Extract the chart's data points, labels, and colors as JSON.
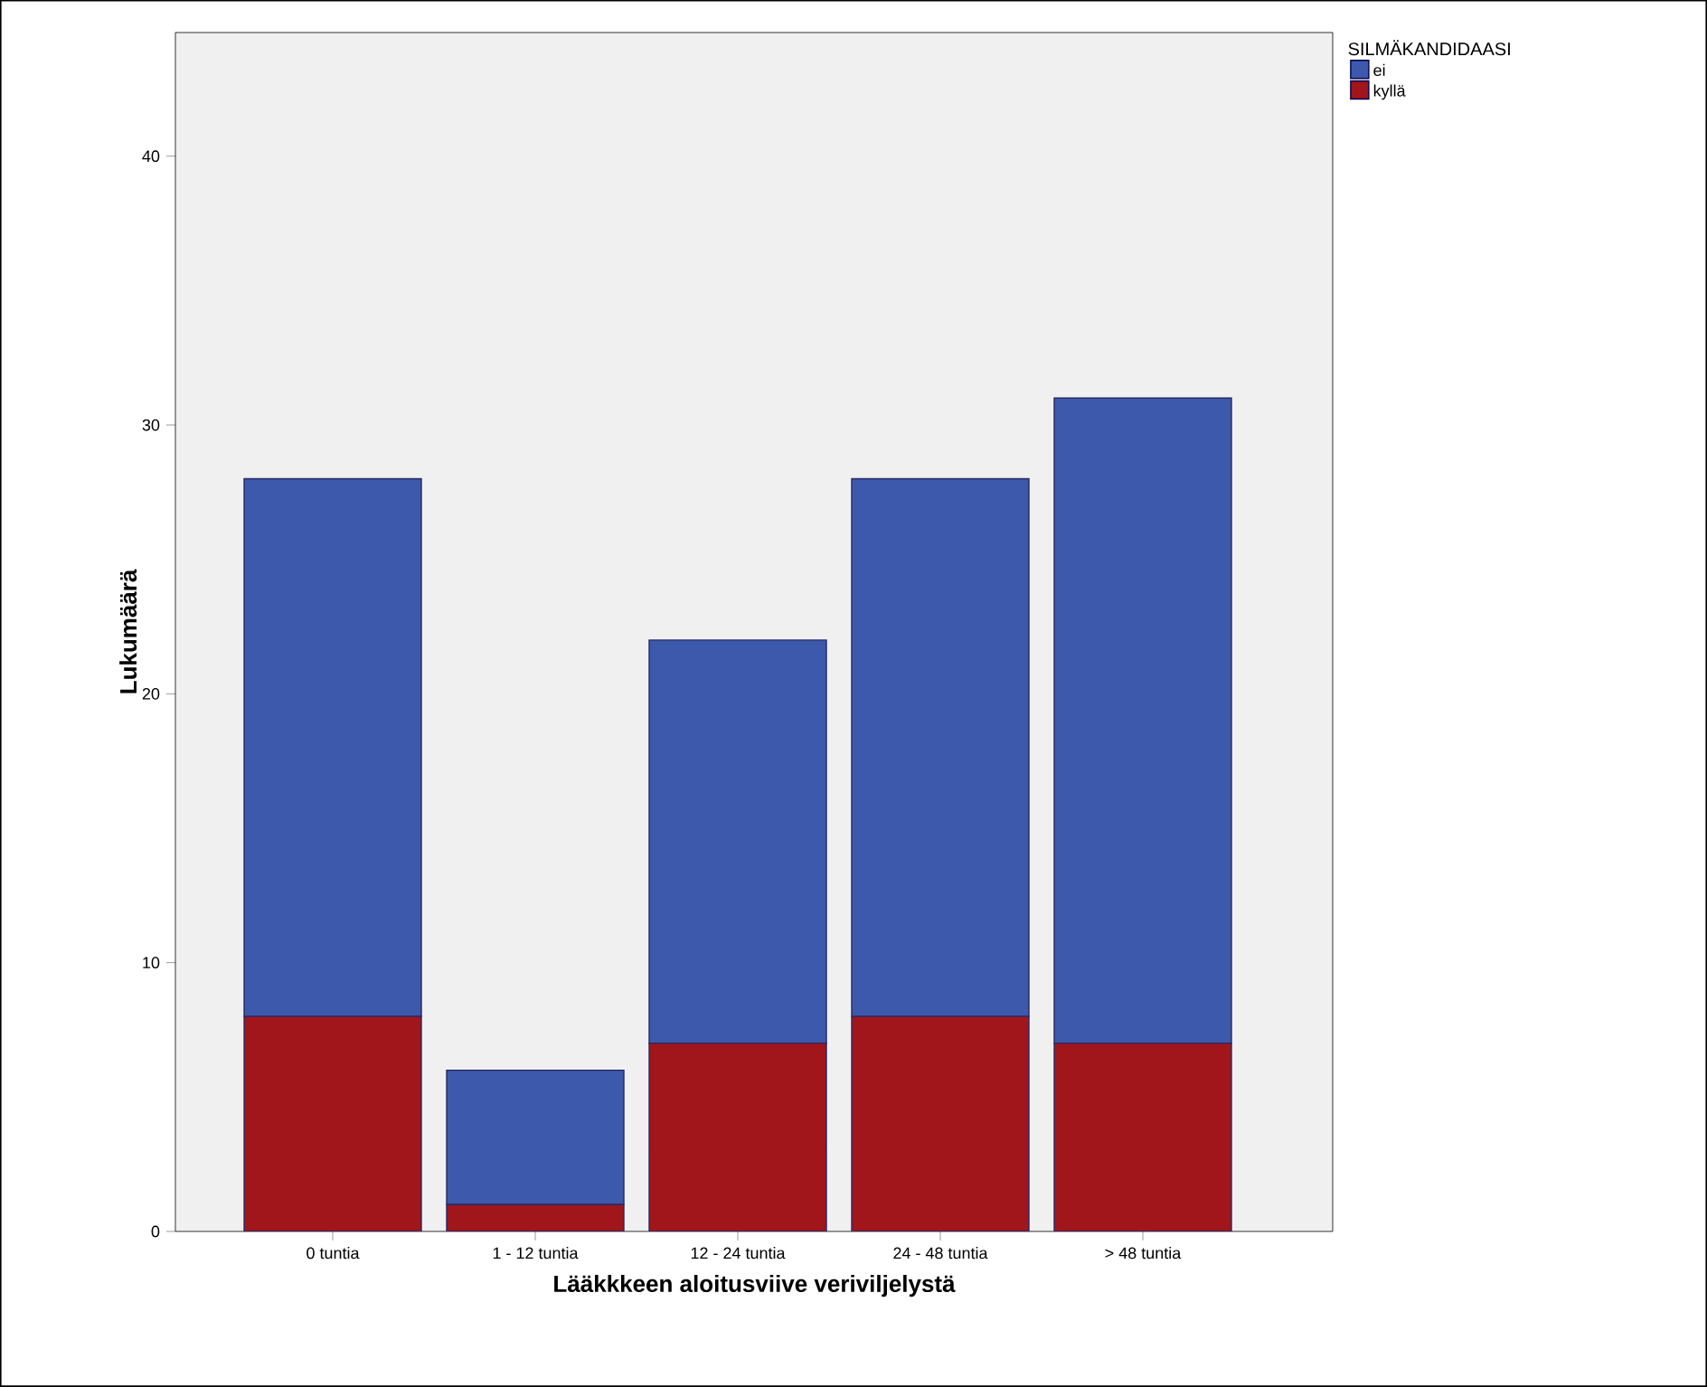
{
  "chart_data": {
    "type": "bar",
    "stacked": true,
    "xlabel": "Lääkkkeen aloitusviive veriviljelystä",
    "ylabel": "Lukumäärä",
    "legend_title": "SILMÄKANDIDAASI",
    "categories": [
      "0 tuntia",
      "1 - 12 tuntia",
      "12 - 24 tuntia",
      "24 - 48 tuntia",
      "> 48 tuntia"
    ],
    "series": [
      {
        "name": "kyllä",
        "color": "#a0161b",
        "values": [
          8,
          1,
          7,
          8,
          7
        ]
      },
      {
        "name": "ei",
        "color": "#3d59ab",
        "values": [
          20,
          5,
          15,
          20,
          24
        ]
      }
    ],
    "ylim": [
      0,
      44.6
    ],
    "yticks": [
      0,
      10,
      20,
      30,
      40
    ],
    "legend": "top right"
  }
}
